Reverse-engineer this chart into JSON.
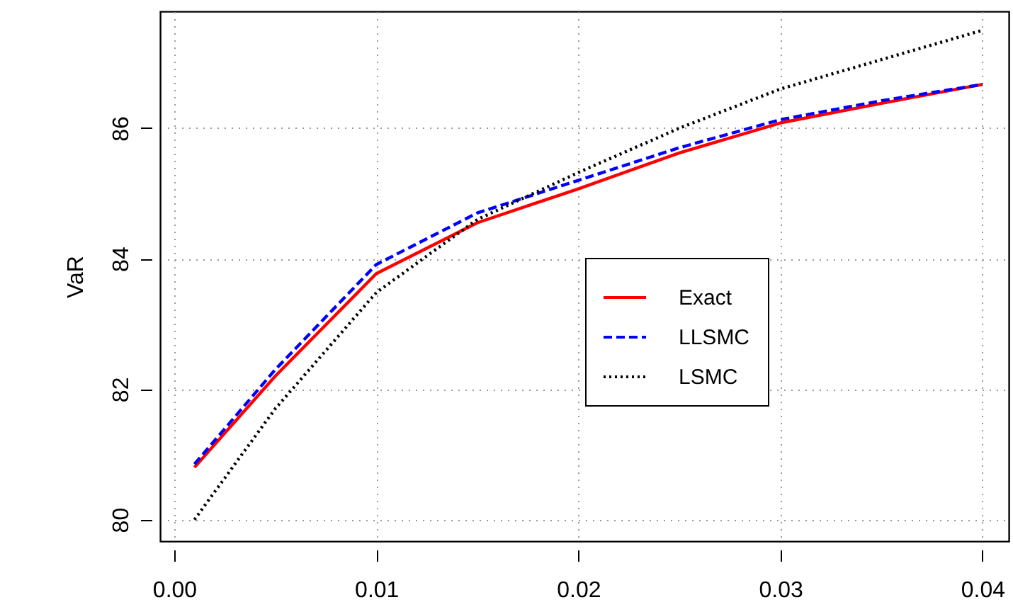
{
  "chart_data": {
    "type": "line",
    "ylabel": "VaR",
    "x": [
      0.001,
      0.005,
      0.01,
      0.015,
      0.02,
      0.025,
      0.03,
      0.035,
      0.04
    ],
    "xlim": [
      -0.0007,
      0.0413
    ],
    "xticks": [
      {
        "value": 0,
        "label": "0.00"
      },
      0.01,
      0.02,
      0.03,
      0.04
    ],
    "ylim": [
      79.67,
      87.79
    ],
    "yticks": [
      80,
      82,
      84,
      86
    ],
    "grid": true,
    "legend": "right",
    "marker": "none",
    "series": [
      {
        "name": "Exact",
        "color": "#ff0000",
        "line_style": "solid",
        "values": [
          80.8,
          82.2,
          83.77,
          84.55,
          85.07,
          85.62,
          86.08,
          86.38,
          86.67
        ]
      },
      {
        "name": "LLSMC",
        "color": "#0000ff",
        "line_style": "dashed",
        "values": [
          80.85,
          82.3,
          83.91,
          84.7,
          85.2,
          85.7,
          86.13,
          86.42,
          86.67
        ]
      },
      {
        "name": "LSMC",
        "color": "#000000",
        "line_style": "dotted",
        "values": [
          80.0,
          81.7,
          83.48,
          84.6,
          85.32,
          86.0,
          86.6,
          87.05,
          87.5
        ]
      }
    ]
  }
}
